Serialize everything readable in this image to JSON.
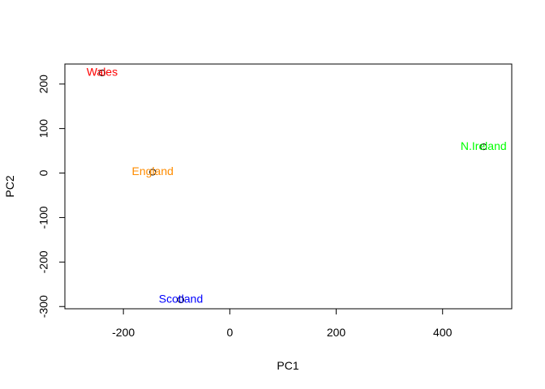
{
  "chart_data": {
    "type": "scatter",
    "title": "",
    "xlabel": "PC1",
    "ylabel": "PC2",
    "xlim": [
      -310,
      530
    ],
    "ylim": [
      -305,
      245
    ],
    "xticks": [
      -200,
      0,
      200,
      400
    ],
    "yticks": [
      -300,
      -200,
      -100,
      0,
      100,
      200
    ],
    "xtick_labels": [
      "-200",
      "0",
      "200",
      "400"
    ],
    "ytick_labels": [
      "-300",
      "-200",
      "-100",
      "0",
      "100",
      "200"
    ],
    "grid": false,
    "legend": "none",
    "points": [
      {
        "label": "England",
        "x": -145,
        "y": 2,
        "color": "#ff8c00"
      },
      {
        "label": "Wales",
        "x": -240,
        "y": 225,
        "color": "#ff0000"
      },
      {
        "label": "Scotland",
        "x": -92,
        "y": -285,
        "color": "#0000ff"
      },
      {
        "label": "N.Ireland",
        "x": 477,
        "y": 59,
        "color": "#00ff00"
      }
    ]
  }
}
